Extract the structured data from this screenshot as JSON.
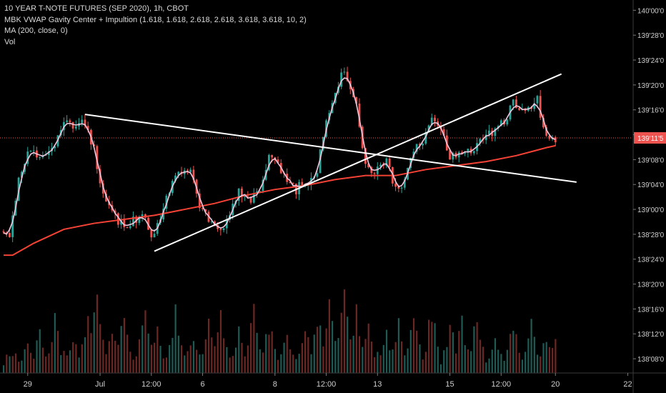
{
  "legend": {
    "title": "10 YEAR T-NOTE FUTURES (SEP 2020), 1h, CBOT",
    "indicator": "MBK VWAP Gavity Center + Impultion (1.618, 1.618, 2.618, 2.618, 3.618, 3.618, 10, 2)",
    "ma": "MA (200, close, 0)",
    "vol": "Vol"
  },
  "colors": {
    "background": "#000000",
    "up": "#26a69a",
    "down": "#ef5350",
    "vwap": "#f2c6dc",
    "ma": "#f44336",
    "trendline": "#ffffff",
    "price_line": "#ef5350",
    "axis_text": "#cfcfcf"
  },
  "chart_data": {
    "type": "candlestick",
    "symbol": "10 YEAR T-NOTE FUTURES (SEP 2020)",
    "interval": "1h",
    "exchange": "CBOT",
    "y_ticks": [
      "140'00'0",
      "139'28'0",
      "139'24'0",
      "139'20'0",
      "139'16'0",
      "139'12'0",
      "139'08'0",
      "139'04'0",
      "139'00'0",
      "138'28'0",
      "138'24'0",
      "138'20'0",
      "138'16'0",
      "138'12'0",
      "138'08'0"
    ],
    "y_tick_values": [
      140.0,
      139.875,
      139.75,
      139.625,
      139.5,
      139.375,
      139.25,
      139.125,
      139.0,
      138.875,
      138.75,
      138.625,
      138.5,
      138.375,
      138.25
    ],
    "ylim": [
      138.2,
      140.03
    ],
    "x_ticks": [
      "29",
      "Jul",
      "12:00",
      "6",
      "8",
      "12:00",
      "13",
      "15",
      "12:00",
      "20",
      "22"
    ],
    "x_tick_bars": [
      8,
      32,
      49,
      66,
      90,
      107,
      124,
      148,
      165,
      183,
      207
    ],
    "bar_count": 183,
    "current_price_label": "139'11'5",
    "current_price": 139.359,
    "price_anchors": [
      [
        0,
        138.89
      ],
      [
        2,
        138.88
      ],
      [
        5,
        139.15
      ],
      [
        8,
        139.3
      ],
      [
        12,
        139.25
      ],
      [
        17,
        139.32
      ],
      [
        20,
        139.43
      ],
      [
        24,
        139.42
      ],
      [
        27,
        139.44
      ],
      [
        30,
        139.3
      ],
      [
        33,
        139.08
      ],
      [
        36,
        138.97
      ],
      [
        40,
        138.92
      ],
      [
        43,
        138.95
      ],
      [
        46,
        138.96
      ],
      [
        49,
        138.88
      ],
      [
        51,
        138.92
      ],
      [
        54,
        139.07
      ],
      [
        58,
        139.2
      ],
      [
        62,
        139.18
      ],
      [
        65,
        139.03
      ],
      [
        69,
        138.94
      ],
      [
        72,
        138.88
      ],
      [
        75,
        138.98
      ],
      [
        78,
        139.08
      ],
      [
        82,
        139.05
      ],
      [
        85,
        139.1
      ],
      [
        88,
        139.25
      ],
      [
        91,
        139.22
      ],
      [
        94,
        139.13
      ],
      [
        97,
        139.1
      ],
      [
        101,
        139.15
      ],
      [
        104,
        139.2
      ],
      [
        107,
        139.45
      ],
      [
        110,
        139.6
      ],
      [
        113,
        139.7
      ],
      [
        117,
        139.55
      ],
      [
        120,
        139.22
      ],
      [
        123,
        139.2
      ],
      [
        127,
        139.25
      ],
      [
        130,
        139.1
      ],
      [
        133,
        139.15
      ],
      [
        136,
        139.3
      ],
      [
        139,
        139.32
      ],
      [
        142,
        139.45
      ],
      [
        145,
        139.4
      ],
      [
        148,
        139.25
      ],
      [
        151,
        139.3
      ],
      [
        154,
        139.3
      ],
      [
        157,
        139.32
      ],
      [
        160,
        139.38
      ],
      [
        163,
        139.4
      ],
      [
        166,
        139.45
      ],
      [
        169,
        139.53
      ],
      [
        172,
        139.48
      ],
      [
        175,
        139.5
      ],
      [
        177,
        139.55
      ],
      [
        179,
        139.4
      ],
      [
        181,
        139.38
      ],
      [
        183,
        139.36
      ]
    ],
    "ma200_anchors": [
      [
        0,
        138.77
      ],
      [
        3,
        138.77
      ],
      [
        10,
        138.83
      ],
      [
        20,
        138.9
      ],
      [
        30,
        138.93
      ],
      [
        40,
        138.95
      ],
      [
        50,
        138.97
      ],
      [
        60,
        139.0
      ],
      [
        70,
        139.03
      ],
      [
        80,
        139.07
      ],
      [
        90,
        139.1
      ],
      [
        100,
        139.12
      ],
      [
        110,
        139.15
      ],
      [
        120,
        139.17
      ],
      [
        130,
        139.17
      ],
      [
        140,
        139.2
      ],
      [
        150,
        139.22
      ],
      [
        160,
        139.24
      ],
      [
        170,
        139.27
      ],
      [
        175,
        139.29
      ],
      [
        180,
        139.31
      ],
      [
        183,
        139.32
      ]
    ],
    "trendlines": [
      {
        "from": [
          27,
          139.477
        ],
        "to": [
          190,
          139.137
        ]
      },
      {
        "from": [
          50,
          138.79
        ],
        "to": [
          185,
          139.68
        ]
      }
    ],
    "volume_peaks": [
      [
        3,
        2
      ],
      [
        8,
        3
      ],
      [
        12,
        4
      ],
      [
        17,
        5
      ],
      [
        23,
        4
      ],
      [
        28,
        6
      ],
      [
        31,
        8
      ],
      [
        36,
        5
      ],
      [
        40,
        6
      ],
      [
        47,
        7
      ],
      [
        51,
        5
      ],
      [
        57,
        6
      ],
      [
        63,
        4
      ],
      [
        68,
        5
      ],
      [
        72,
        6
      ],
      [
        78,
        4
      ],
      [
        83,
        6
      ],
      [
        88,
        5
      ],
      [
        94,
        4
      ],
      [
        100,
        5
      ],
      [
        104,
        6
      ],
      [
        108,
        7
      ],
      [
        113,
        8
      ],
      [
        117,
        6
      ],
      [
        121,
        5
      ],
      [
        127,
        4
      ],
      [
        131,
        5
      ],
      [
        136,
        6
      ],
      [
        142,
        7
      ],
      [
        148,
        5
      ],
      [
        152,
        5
      ],
      [
        157,
        6
      ],
      [
        163,
        4
      ],
      [
        169,
        5
      ],
      [
        175,
        5
      ],
      [
        180,
        4
      ],
      [
        183,
        3
      ]
    ]
  }
}
